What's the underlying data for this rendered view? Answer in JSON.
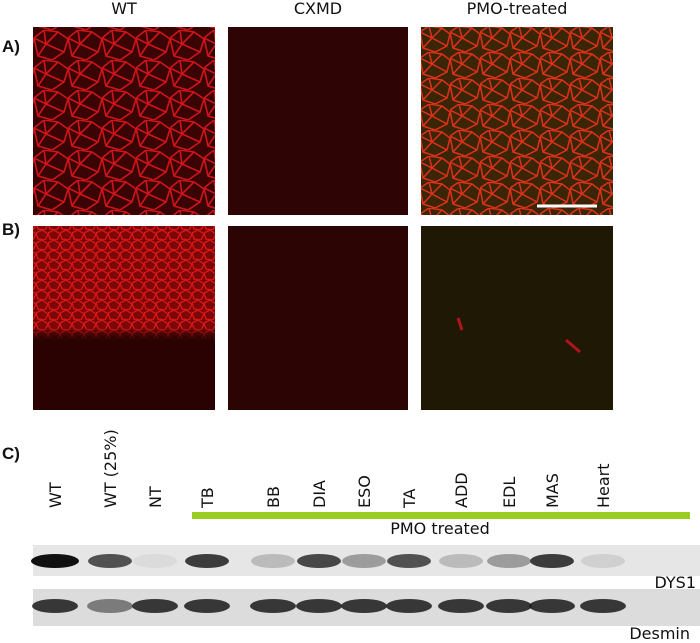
{
  "panel_a": {
    "label": "A)"
  },
  "panel_b": {
    "label": "B)"
  },
  "panel_c": {
    "label": "C)"
  },
  "columns": [
    "WT",
    "CXMD",
    "PMO-treated"
  ],
  "lanes": [
    "WT",
    "WT (25%)",
    "NT",
    "TB",
    "BB",
    "DIA",
    "ESO",
    "TA",
    "ADD",
    "EDL",
    "MAS",
    "Heart"
  ],
  "group_label": "PMO treated",
  "blots": [
    "DYS1",
    "Desmin"
  ]
}
